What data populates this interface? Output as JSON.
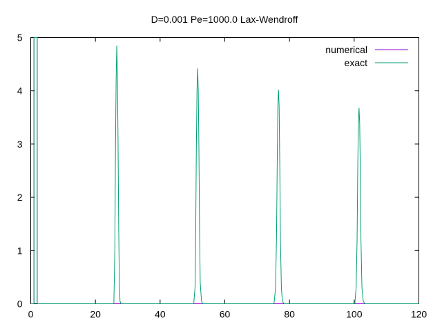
{
  "chart_data": {
    "type": "line",
    "title": "D=0.001 Pe=1000.0 Lax-Wendroff",
    "xlabel": "",
    "ylabel": "",
    "xlim": [
      0,
      120
    ],
    "ylim": [
      0,
      5
    ],
    "xticks": [
      0,
      20,
      40,
      60,
      80,
      100,
      120
    ],
    "yticks": [
      0,
      1,
      2,
      3,
      4,
      5
    ],
    "legend_position": "top-right",
    "grid": false,
    "series": [
      {
        "name": "numerical",
        "color": "#9400d3",
        "x": [
          0,
          1.0,
          1.0,
          2.0,
          2.0,
          120
        ],
        "y": [
          0,
          0,
          5,
          5,
          0,
          0
        ]
      },
      {
        "name": "exact",
        "color": "#009e73",
        "x": [
          0,
          1.0,
          1.0,
          2.0,
          2.0,
          25.7,
          26.0,
          26.2,
          26.4,
          26.6,
          26.8,
          27.0,
          27.2,
          27.4,
          27.6,
          27.9,
          28.3,
          50.4,
          50.8,
          51.0,
          51.2,
          51.4,
          51.6,
          51.8,
          52.0,
          52.2,
          52.4,
          52.8,
          53.2,
          75.2,
          75.7,
          76.0,
          76.2,
          76.4,
          76.6,
          76.8,
          77.0,
          77.2,
          77.5,
          77.8,
          78.3,
          100.2,
          100.6,
          100.9,
          101.1,
          101.3,
          101.5,
          101.7,
          101.9,
          102.1,
          102.4,
          102.8,
          103.3,
          120
        ],
        "y": [
          0,
          0,
          5,
          5,
          0,
          0,
          1.0,
          2.9,
          4.2,
          4.85,
          4.3,
          3.0,
          1.4,
          0.4,
          0.05,
          0,
          0,
          0,
          0.3,
          1.3,
          2.9,
          4.0,
          4.42,
          4.0,
          2.9,
          1.4,
          0.4,
          0.05,
          0,
          0,
          0.3,
          1.3,
          2.6,
          3.7,
          4.02,
          3.7,
          2.6,
          1.2,
          0.3,
          0.05,
          0,
          0,
          0.3,
          1.2,
          2.5,
          3.4,
          3.68,
          3.4,
          2.5,
          1.2,
          0.3,
          0.05,
          0,
          0
        ]
      }
    ]
  }
}
